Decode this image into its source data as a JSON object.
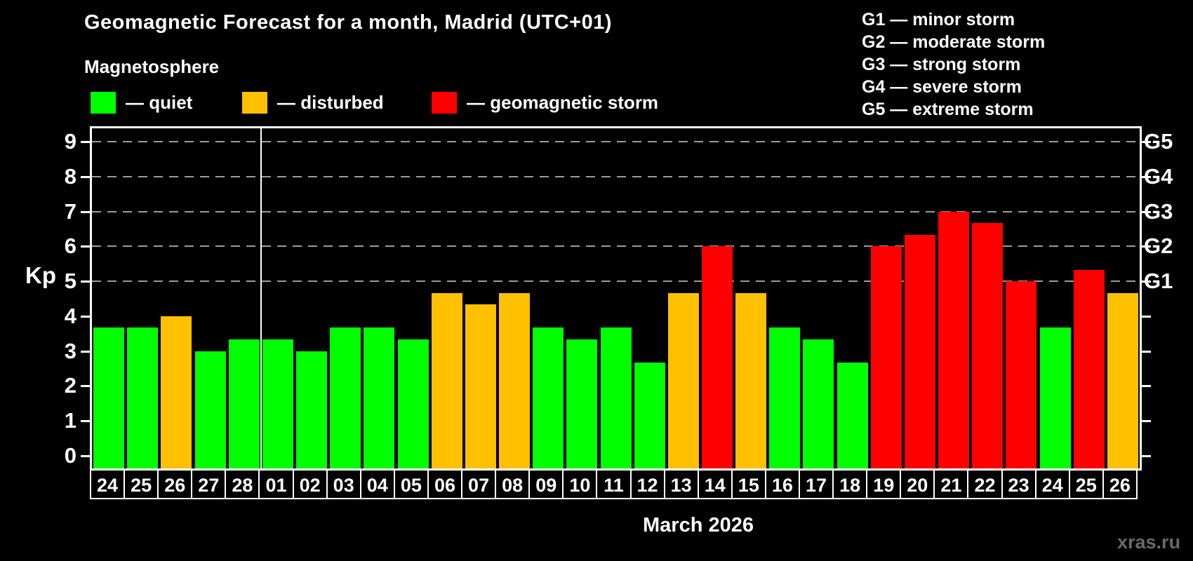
{
  "title": "Geomagnetic Forecast for a month, Madrid (UTC+01)",
  "subtitle": "Magnetosphere",
  "kp_legend": {
    "items": [
      {
        "status": "quiet",
        "label": "— quiet",
        "color": "#00ff00"
      },
      {
        "status": "disturbed",
        "label": "— disturbed",
        "color": "#ffc000"
      },
      {
        "status": "storm",
        "label": "— geomagnetic storm",
        "color": "#ff0000"
      }
    ]
  },
  "storm_scale_legend": {
    "lines": [
      "G1 — minor storm",
      "G2 — moderate storm",
      "G3 — strong storm",
      "G4 — severe storm",
      "G5 — extreme storm"
    ]
  },
  "watermark": "xras.ru",
  "chart_data": {
    "type": "bar",
    "title": "Geomagnetic Forecast for a month, Madrid (UTC+01)",
    "xlabel": "March 2026",
    "ylabel": "Kp",
    "ylim": [
      0,
      9
    ],
    "y_ticks": [
      0,
      1,
      2,
      3,
      4,
      5,
      6,
      7,
      8,
      9
    ],
    "gridlines_at": [
      5,
      6,
      7,
      8,
      9
    ],
    "grid": "dashed, storm levels only",
    "right_axis_labels": [
      {
        "kp": 5,
        "label": "G1"
      },
      {
        "kp": 6,
        "label": "G2"
      },
      {
        "kp": 7,
        "label": "G3"
      },
      {
        "kp": 8,
        "label": "G4"
      },
      {
        "kp": 9,
        "label": "G5"
      }
    ],
    "month_separator_after_index": 4,
    "status_colors": {
      "quiet": "#00ff00",
      "disturbed": "#ffc000",
      "storm": "#ff0000"
    },
    "categories": [
      "24",
      "25",
      "26",
      "27",
      "28",
      "01",
      "02",
      "03",
      "04",
      "05",
      "06",
      "07",
      "08",
      "09",
      "10",
      "11",
      "12",
      "13",
      "14",
      "15",
      "16",
      "17",
      "18",
      "19",
      "20",
      "21",
      "22",
      "23",
      "24",
      "25",
      "26"
    ],
    "days": [
      {
        "label": "24",
        "kp": 3.67,
        "status": "quiet"
      },
      {
        "label": "25",
        "kp": 3.67,
        "status": "quiet"
      },
      {
        "label": "26",
        "kp": 4.0,
        "status": "disturbed"
      },
      {
        "label": "27",
        "kp": 3.0,
        "status": "quiet"
      },
      {
        "label": "28",
        "kp": 3.33,
        "status": "quiet"
      },
      {
        "label": "01",
        "kp": 3.33,
        "status": "quiet"
      },
      {
        "label": "02",
        "kp": 3.0,
        "status": "quiet"
      },
      {
        "label": "03",
        "kp": 3.67,
        "status": "quiet"
      },
      {
        "label": "04",
        "kp": 3.67,
        "status": "quiet"
      },
      {
        "label": "05",
        "kp": 3.33,
        "status": "quiet"
      },
      {
        "label": "06",
        "kp": 4.67,
        "status": "disturbed"
      },
      {
        "label": "07",
        "kp": 4.33,
        "status": "disturbed"
      },
      {
        "label": "08",
        "kp": 4.67,
        "status": "disturbed"
      },
      {
        "label": "09",
        "kp": 3.67,
        "status": "quiet"
      },
      {
        "label": "10",
        "kp": 3.33,
        "status": "quiet"
      },
      {
        "label": "11",
        "kp": 3.67,
        "status": "quiet"
      },
      {
        "label": "12",
        "kp": 2.67,
        "status": "quiet"
      },
      {
        "label": "13",
        "kp": 4.67,
        "status": "disturbed"
      },
      {
        "label": "14",
        "kp": 6.0,
        "status": "storm"
      },
      {
        "label": "15",
        "kp": 4.67,
        "status": "disturbed"
      },
      {
        "label": "16",
        "kp": 3.67,
        "status": "quiet"
      },
      {
        "label": "17",
        "kp": 3.33,
        "status": "quiet"
      },
      {
        "label": "18",
        "kp": 2.67,
        "status": "quiet"
      },
      {
        "label": "19",
        "kp": 6.0,
        "status": "storm"
      },
      {
        "label": "20",
        "kp": 6.33,
        "status": "storm"
      },
      {
        "label": "21",
        "kp": 7.0,
        "status": "storm"
      },
      {
        "label": "22",
        "kp": 6.67,
        "status": "storm"
      },
      {
        "label": "23",
        "kp": 5.0,
        "status": "storm"
      },
      {
        "label": "24",
        "kp": 3.67,
        "status": "quiet"
      },
      {
        "label": "25",
        "kp": 5.33,
        "status": "storm"
      },
      {
        "label": "26",
        "kp": 4.67,
        "status": "disturbed"
      }
    ]
  }
}
